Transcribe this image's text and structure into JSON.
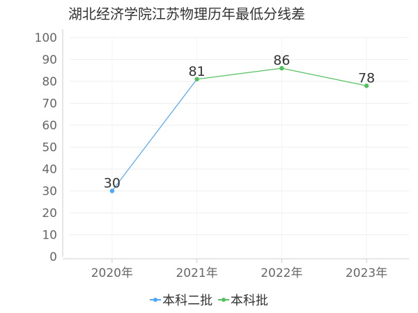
{
  "chart_data": {
    "type": "line",
    "title": "湖北经济学院江苏物理历年最低分线差",
    "categories": [
      "2020年",
      "2021年",
      "2022年",
      "2023年"
    ],
    "ylim": [
      0,
      100
    ],
    "yticks": [
      0,
      10,
      20,
      30,
      40,
      50,
      60,
      70,
      80,
      90,
      100
    ],
    "grid": true,
    "legend_position": "bottom",
    "series": [
      {
        "name": "本科二批",
        "color": "#4da6ff",
        "values": [
          30,
          null,
          null,
          null
        ]
      },
      {
        "name": "本科批",
        "color": "#52c05d",
        "values": [
          null,
          81,
          86,
          78
        ]
      }
    ],
    "connector": {
      "color": "#4da6ff",
      "from_index": 0,
      "to_index": 1
    },
    "data_labels": [
      {
        "index": 0,
        "value": "30"
      },
      {
        "index": 1,
        "value": "81"
      },
      {
        "index": 2,
        "value": "86"
      },
      {
        "index": 3,
        "value": "78"
      }
    ]
  }
}
